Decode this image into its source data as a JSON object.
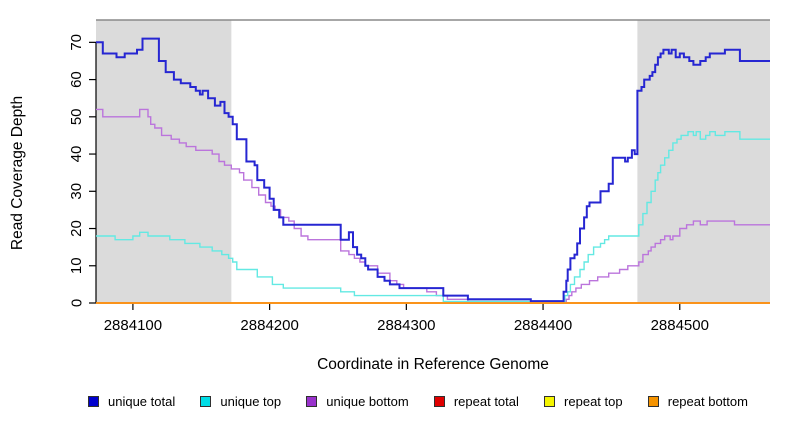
{
  "chart_data": {
    "type": "line",
    "step": "after",
    "title": "",
    "xlabel": "Coordinate in Reference Genome",
    "ylabel": "Read Coverage Depth",
    "xlim": [
      2884073,
      2884566
    ],
    "ylim": [
      0,
      76
    ],
    "x_ticks": [
      "2884100",
      "2884200",
      "2884300",
      "2884400",
      "2884500"
    ],
    "x_tick_values": [
      2884100,
      2884200,
      2884300,
      2884400,
      2884500
    ],
    "y_ticks": [
      0,
      10,
      20,
      30,
      40,
      50,
      60,
      70
    ],
    "grid": false,
    "legend_position": "bottom",
    "background": "#ffffff",
    "region_fill": "#DBDBDB",
    "region_top_border": "#8A8A8A",
    "axis_color": "#000000",
    "shaded_regions": [
      {
        "from": 2884073,
        "to": 2884172
      },
      {
        "from": 2884469,
        "to": 2884566
      }
    ],
    "series": [
      {
        "name": "repeat total",
        "key": "repeat-total",
        "line_color": "#CC0000",
        "swatch_color": "#E00000",
        "width": 1.4,
        "points": [
          [
            2884073,
            0
          ],
          [
            2884566,
            0
          ]
        ]
      },
      {
        "name": "repeat top",
        "key": "repeat-top",
        "line_color": "#F2F200",
        "swatch_color": "#F5F500",
        "width": 1.4,
        "points": [
          [
            2884073,
            0
          ],
          [
            2884566,
            0
          ]
        ]
      },
      {
        "name": "unique bottom",
        "key": "unique-bottom",
        "line_color": "#BB74DC",
        "swatch_color": "#9932CC",
        "width": 1.4,
        "points": [
          [
            2884073,
            52
          ],
          [
            2884078,
            50
          ],
          [
            2884105,
            52
          ],
          [
            2884111,
            50
          ],
          [
            2884113,
            48
          ],
          [
            2884116,
            47
          ],
          [
            2884121,
            45
          ],
          [
            2884128,
            44
          ],
          [
            2884134,
            43
          ],
          [
            2884139,
            42
          ],
          [
            2884146,
            41
          ],
          [
            2884158,
            40
          ],
          [
            2884163,
            38
          ],
          [
            2884167,
            37
          ],
          [
            2884172,
            36
          ],
          [
            2884178,
            35
          ],
          [
            2884181,
            33
          ],
          [
            2884187,
            31
          ],
          [
            2884192,
            29
          ],
          [
            2884197,
            27
          ],
          [
            2884201,
            26
          ],
          [
            2884204,
            25
          ],
          [
            2884208,
            23
          ],
          [
            2884214,
            22
          ],
          [
            2884218,
            20
          ],
          [
            2884223,
            18
          ],
          [
            2884228,
            17
          ],
          [
            2884252,
            14
          ],
          [
            2884258,
            13
          ],
          [
            2884262,
            12
          ],
          [
            2884266,
            11
          ],
          [
            2884270,
            10
          ],
          [
            2884279,
            8
          ],
          [
            2884288,
            6
          ],
          [
            2884293,
            5
          ],
          [
            2884298,
            4
          ],
          [
            2884315,
            3
          ],
          [
            2884322,
            2
          ],
          [
            2884330,
            1
          ],
          [
            2884345,
            0.4
          ],
          [
            2884417,
            1
          ],
          [
            2884419,
            2
          ],
          [
            2884421,
            3
          ],
          [
            2884424,
            4
          ],
          [
            2884428,
            5
          ],
          [
            2884434,
            6
          ],
          [
            2884440,
            7
          ],
          [
            2884448,
            8
          ],
          [
            2884456,
            9
          ],
          [
            2884462,
            10
          ],
          [
            2884470,
            11
          ],
          [
            2884473,
            13
          ],
          [
            2884477,
            14
          ],
          [
            2884479,
            15
          ],
          [
            2884482,
            16
          ],
          [
            2884486,
            17
          ],
          [
            2884489,
            18
          ],
          [
            2884493,
            17
          ],
          [
            2884495,
            18
          ],
          [
            2884500,
            20
          ],
          [
            2884505,
            21
          ],
          [
            2884510,
            22
          ],
          [
            2884515,
            21
          ],
          [
            2884520,
            22
          ],
          [
            2884533,
            22
          ],
          [
            2884540,
            21
          ],
          [
            2884566,
            21
          ]
        ]
      },
      {
        "name": "unique top",
        "key": "unique-top",
        "line_color": "#63E9E3",
        "swatch_color": "#00DDE6",
        "width": 1.4,
        "points": [
          [
            2884073,
            18
          ],
          [
            2884087,
            17
          ],
          [
            2884100,
            18
          ],
          [
            2884105,
            19
          ],
          [
            2884111,
            18
          ],
          [
            2884127,
            17
          ],
          [
            2884138,
            16
          ],
          [
            2884149,
            15
          ],
          [
            2884158,
            14
          ],
          [
            2884165,
            13
          ],
          [
            2884170,
            12
          ],
          [
            2884173,
            11
          ],
          [
            2884176,
            9
          ],
          [
            2884191,
            7
          ],
          [
            2884202,
            5
          ],
          [
            2884210,
            4
          ],
          [
            2884252,
            3
          ],
          [
            2884262,
            2
          ],
          [
            2884327,
            0.4
          ],
          [
            2884416,
            2
          ],
          [
            2884418,
            3
          ],
          [
            2884420,
            5
          ],
          [
            2884423,
            7
          ],
          [
            2884427,
            9
          ],
          [
            2884430,
            11
          ],
          [
            2884433,
            13
          ],
          [
            2884437,
            15
          ],
          [
            2884442,
            16
          ],
          [
            2884445,
            17
          ],
          [
            2884448,
            18
          ],
          [
            2884470,
            21
          ],
          [
            2884473,
            24
          ],
          [
            2884476,
            27
          ],
          [
            2884479,
            30
          ],
          [
            2884482,
            33
          ],
          [
            2884484,
            35
          ],
          [
            2884486,
            37
          ],
          [
            2884489,
            39
          ],
          [
            2884492,
            41
          ],
          [
            2884495,
            43
          ],
          [
            2884498,
            44
          ],
          [
            2884501,
            45
          ],
          [
            2884506,
            46
          ],
          [
            2884510,
            45
          ],
          [
            2884512,
            46
          ],
          [
            2884515,
            44
          ],
          [
            2884519,
            45
          ],
          [
            2884522,
            46
          ],
          [
            2884526,
            45
          ],
          [
            2884533,
            46
          ],
          [
            2884544,
            44
          ],
          [
            2884566,
            44
          ]
        ]
      },
      {
        "name": "unique total",
        "key": "unique-total",
        "line_color": "#2626D2",
        "swatch_color": "#0000CD",
        "width": 2,
        "points": [
          [
            2884073,
            70
          ],
          [
            2884078,
            67
          ],
          [
            2884088,
            66
          ],
          [
            2884094,
            67
          ],
          [
            2884103,
            68
          ],
          [
            2884107,
            71
          ],
          [
            2884119,
            65
          ],
          [
            2884124,
            62
          ],
          [
            2884130,
            60
          ],
          [
            2884135,
            59
          ],
          [
            2884142,
            58
          ],
          [
            2884146,
            57
          ],
          [
            2884149,
            56
          ],
          [
            2884151,
            57
          ],
          [
            2884155,
            55
          ],
          [
            2884160,
            53
          ],
          [
            2884164,
            54
          ],
          [
            2884167,
            51
          ],
          [
            2884170,
            50
          ],
          [
            2884173,
            48
          ],
          [
            2884176,
            44
          ],
          [
            2884183,
            38
          ],
          [
            2884189,
            37
          ],
          [
            2884191,
            33
          ],
          [
            2884196,
            31
          ],
          [
            2884200,
            28
          ],
          [
            2884203,
            25
          ],
          [
            2884207,
            23
          ],
          [
            2884210,
            21
          ],
          [
            2884252,
            17
          ],
          [
            2884258,
            19
          ],
          [
            2884261,
            15
          ],
          [
            2884264,
            13
          ],
          [
            2884267,
            12
          ],
          [
            2884270,
            10
          ],
          [
            2884272,
            9
          ],
          [
            2884279,
            7
          ],
          [
            2884284,
            6
          ],
          [
            2884288,
            5
          ],
          [
            2884295,
            4
          ],
          [
            2884327,
            2
          ],
          [
            2884345,
            1
          ],
          [
            2884391,
            0.5
          ],
          [
            2884415,
            3
          ],
          [
            2884417,
            6
          ],
          [
            2884418,
            9
          ],
          [
            2884420,
            12
          ],
          [
            2884423,
            13
          ],
          [
            2884425,
            16
          ],
          [
            2884427,
            20
          ],
          [
            2884430,
            23
          ],
          [
            2884432,
            26
          ],
          [
            2884434,
            27
          ],
          [
            2884442,
            30
          ],
          [
            2884448,
            32
          ],
          [
            2884451,
            39
          ],
          [
            2884460,
            38
          ],
          [
            2884462,
            39
          ],
          [
            2884465,
            41
          ],
          [
            2884467,
            40
          ],
          [
            2884469,
            57
          ],
          [
            2884472,
            58
          ],
          [
            2884474,
            60
          ],
          [
            2884478,
            61
          ],
          [
            2884480,
            62
          ],
          [
            2884482,
            64
          ],
          [
            2884484,
            66
          ],
          [
            2884486,
            67
          ],
          [
            2884488,
            68
          ],
          [
            2884492,
            67
          ],
          [
            2884494,
            68
          ],
          [
            2884497,
            66
          ],
          [
            2884500,
            67
          ],
          [
            2884503,
            66
          ],
          [
            2884507,
            65
          ],
          [
            2884510,
            64
          ],
          [
            2884515,
            65
          ],
          [
            2884519,
            66
          ],
          [
            2884522,
            67
          ],
          [
            2884533,
            68
          ],
          [
            2884544,
            65
          ],
          [
            2884566,
            65
          ]
        ]
      },
      {
        "name": "repeat bottom",
        "key": "repeat-bottom",
        "line_color": "#FF9018",
        "swatch_color": "#F59300",
        "width": 1.8,
        "points": [
          [
            2884073,
            0
          ],
          [
            2884566,
            0
          ]
        ]
      }
    ]
  }
}
